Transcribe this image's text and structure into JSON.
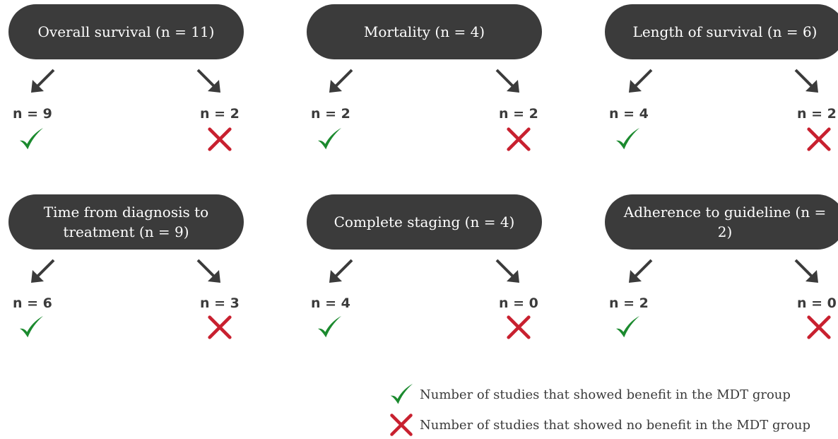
{
  "colors": {
    "pill": "#3b3b3b",
    "check": "#1b8a2e",
    "cross": "#c8202f",
    "text": "#3b3b3b"
  },
  "icons": {
    "down_left": "arrow-down-left-icon",
    "down_right": "arrow-down-right-icon",
    "benefit": "check-icon",
    "no_benefit": "cross-icon"
  },
  "outcomes": [
    {
      "label": "Overall survival (n = 11)",
      "benefit": "n = 9",
      "no_benefit": "n = 2"
    },
    {
      "label": "Mortality (n = 4)",
      "benefit": "n = 2",
      "no_benefit": "n = 2"
    },
    {
      "label": "Length of survival (n = 6)",
      "benefit": "n = 4",
      "no_benefit": "n = 2"
    },
    {
      "label": "Time from diagnosis to\ntreatment (n = 9)",
      "benefit": "n = 6",
      "no_benefit": "n = 3"
    },
    {
      "label": "Complete staging (n = 4)",
      "benefit": "n = 4",
      "no_benefit": "n = 0"
    },
    {
      "label": "Adherence to guideline (n = 2)",
      "benefit": "n = 2",
      "no_benefit": "n = 0"
    }
  ],
  "legend": {
    "benefit": "Number of studies that showed benefit in the MDT group",
    "no_benefit": "Number of studies that showed no benefit in the MDT group"
  }
}
